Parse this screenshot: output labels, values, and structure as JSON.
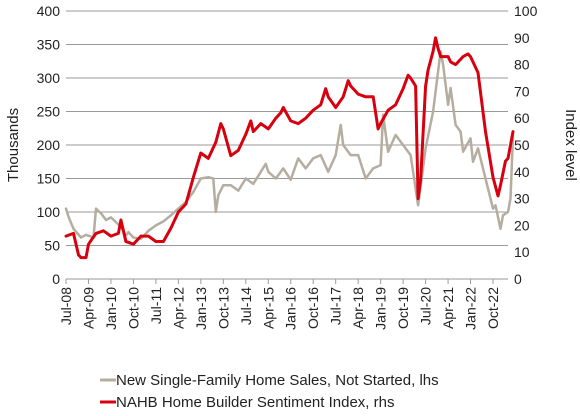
{
  "chart_data": {
    "type": "line",
    "ylabel_left": "Thousands",
    "ylabel_right": "Index level",
    "ylim_left": [
      0,
      400
    ],
    "ylim_right": [
      0,
      100
    ],
    "yticks_left": [
      0,
      50,
      100,
      150,
      200,
      250,
      300,
      350,
      400
    ],
    "yticks_right": [
      0,
      10,
      20,
      30,
      40,
      50,
      60,
      70,
      80,
      90,
      100
    ],
    "x_start": "Jul-08",
    "x_end": "Apr-23",
    "xticks": [
      "Jul-08",
      "Apr-09",
      "Jan-10",
      "Oct-10",
      "Jul-11",
      "Apr-12",
      "Jan-13",
      "Oct-13",
      "Jul-14",
      "Apr-15",
      "Jan-16",
      "Oct-16",
      "Jul-17",
      "Apr-18",
      "Jan-19",
      "Oct-19",
      "Jul-20",
      "Apr-21",
      "Jan-22",
      "Oct-22"
    ],
    "grid": "horizontal",
    "legend_position": "bottom",
    "series": [
      {
        "name": "New Single-Family Home Sales, Not Started, lhs",
        "axis": "left",
        "color": "#b5ada0",
        "points": [
          [
            "Jul-08",
            105
          ],
          [
            "Aug-08",
            93
          ],
          [
            "Oct-08",
            75
          ],
          [
            "Jan-09",
            62
          ],
          [
            "Mar-09",
            66
          ],
          [
            "Jun-09",
            62
          ],
          [
            "Jul-09",
            105
          ],
          [
            "Sep-09",
            98
          ],
          [
            "Nov-09",
            88
          ],
          [
            "Jan-10",
            92
          ],
          [
            "Mar-10",
            85
          ],
          [
            "May-10",
            78
          ],
          [
            "Jul-10",
            65
          ],
          [
            "Aug-10",
            70
          ],
          [
            "Oct-10",
            62
          ],
          [
            "Jan-11",
            60
          ],
          [
            "Apr-11",
            72
          ],
          [
            "Jul-11",
            80
          ],
          [
            "Oct-11",
            86
          ],
          [
            "Jan-12",
            95
          ],
          [
            "Apr-12",
            105
          ],
          [
            "Jul-12",
            115
          ],
          [
            "Oct-12",
            130
          ],
          [
            "Jan-13",
            150
          ],
          [
            "Apr-13",
            152
          ],
          [
            "Jun-13",
            150
          ],
          [
            "Jul-13",
            100
          ],
          [
            "Aug-13",
            125
          ],
          [
            "Oct-13",
            140
          ],
          [
            "Jan-14",
            140
          ],
          [
            "Apr-14",
            132
          ],
          [
            "Jul-14",
            150
          ],
          [
            "Oct-14",
            142
          ],
          [
            "Jan-15",
            160
          ],
          [
            "Mar-15",
            172
          ],
          [
            "Apr-15",
            160
          ],
          [
            "Jul-15",
            150
          ],
          [
            "Oct-15",
            165
          ],
          [
            "Jan-16",
            148
          ],
          [
            "Apr-16",
            180
          ],
          [
            "Jul-16",
            165
          ],
          [
            "Oct-16",
            180
          ],
          [
            "Jan-17",
            185
          ],
          [
            "Apr-17",
            160
          ],
          [
            "Jul-17",
            185
          ],
          [
            "Sep-17",
            230
          ],
          [
            "Oct-17",
            200
          ],
          [
            "Jan-18",
            185
          ],
          [
            "Apr-18",
            185
          ],
          [
            "Jul-18",
            150
          ],
          [
            "Oct-18",
            165
          ],
          [
            "Jan-19",
            170
          ],
          [
            "Feb-19",
            245
          ],
          [
            "Apr-19",
            190
          ],
          [
            "Jul-19",
            215
          ],
          [
            "Oct-19",
            200
          ],
          [
            "Jan-20",
            185
          ],
          [
            "Apr-20",
            110
          ],
          [
            "Jul-20",
            195
          ],
          [
            "Oct-20",
            250
          ],
          [
            "Jan-21",
            340
          ],
          [
            "Feb-21",
            320
          ],
          [
            "Apr-21",
            260
          ],
          [
            "May-21",
            285
          ],
          [
            "Jul-21",
            230
          ],
          [
            "Sep-21",
            220
          ],
          [
            "Oct-21",
            190
          ],
          [
            "Jan-22",
            210
          ],
          [
            "Feb-22",
            175
          ],
          [
            "Apr-22",
            195
          ],
          [
            "Jul-22",
            150
          ],
          [
            "Oct-22",
            105
          ],
          [
            "Nov-22",
            110
          ],
          [
            "Jan-23",
            75
          ],
          [
            "Feb-23",
            95
          ],
          [
            "Apr-23",
            100
          ],
          [
            "May-23",
            120
          ],
          [
            "Jun-23",
            215
          ]
        ]
      },
      {
        "name": "NAHB Home Builder Sentiment Index, rhs",
        "axis": "right",
        "color": "#d7000f",
        "points": [
          [
            "Jul-08",
            16
          ],
          [
            "Oct-08",
            17
          ],
          [
            "Dec-08",
            9
          ],
          [
            "Jan-09",
            8
          ],
          [
            "Mar-09",
            8
          ],
          [
            "Apr-09",
            13
          ],
          [
            "Jul-09",
            17
          ],
          [
            "Oct-09",
            18
          ],
          [
            "Jan-10",
            16
          ],
          [
            "Apr-10",
            17
          ],
          [
            "May-10",
            22
          ],
          [
            "Jul-10",
            14
          ],
          [
            "Oct-10",
            13
          ],
          [
            "Jan-11",
            16
          ],
          [
            "Apr-11",
            16
          ],
          [
            "Jul-11",
            14
          ],
          [
            "Oct-11",
            14
          ],
          [
            "Jan-12",
            19
          ],
          [
            "Apr-12",
            25
          ],
          [
            "Jul-12",
            28
          ],
          [
            "Oct-12",
            38
          ],
          [
            "Jan-13",
            47
          ],
          [
            "Apr-13",
            45
          ],
          [
            "Jul-13",
            51
          ],
          [
            "Sep-13",
            58
          ],
          [
            "Oct-13",
            56
          ],
          [
            "Jan-14",
            46
          ],
          [
            "Apr-14",
            48
          ],
          [
            "Jul-14",
            54
          ],
          [
            "Sep-14",
            59
          ],
          [
            "Oct-14",
            55
          ],
          [
            "Jan-15",
            58
          ],
          [
            "Apr-15",
            56
          ],
          [
            "Jul-15",
            60
          ],
          [
            "Sep-15",
            62
          ],
          [
            "Oct-15",
            64
          ],
          [
            "Jan-16",
            59
          ],
          [
            "Apr-16",
            58
          ],
          [
            "Jul-16",
            60
          ],
          [
            "Oct-16",
            63
          ],
          [
            "Jan-17",
            65
          ],
          [
            "Mar-17",
            71
          ],
          [
            "Apr-17",
            68
          ],
          [
            "Jul-17",
            64
          ],
          [
            "Oct-17",
            68
          ],
          [
            "Dec-17",
            74
          ],
          [
            "Jan-18",
            72
          ],
          [
            "Apr-18",
            69
          ],
          [
            "Jul-18",
            68
          ],
          [
            "Oct-18",
            68
          ],
          [
            "Dec-18",
            56
          ],
          [
            "Jan-19",
            58
          ],
          [
            "Apr-19",
            63
          ],
          [
            "Jul-19",
            65
          ],
          [
            "Oct-19",
            71
          ],
          [
            "Dec-19",
            76
          ],
          [
            "Jan-20",
            75
          ],
          [
            "Mar-20",
            72
          ],
          [
            "Apr-20",
            30
          ],
          [
            "May-20",
            37
          ],
          [
            "Jul-20",
            72
          ],
          [
            "Aug-20",
            78
          ],
          [
            "Oct-20",
            85
          ],
          [
            "Nov-20",
            90
          ],
          [
            "Dec-20",
            86
          ],
          [
            "Jan-21",
            83
          ],
          [
            "Apr-21",
            83
          ],
          [
            "May-21",
            81
          ],
          [
            "Jul-21",
            80
          ],
          [
            "Oct-21",
            83
          ],
          [
            "Dec-21",
            84
          ],
          [
            "Jan-22",
            83
          ],
          [
            "Apr-22",
            77
          ],
          [
            "Jul-22",
            55
          ],
          [
            "Oct-22",
            38
          ],
          [
            "Dec-22",
            31
          ],
          [
            "Jan-23",
            35
          ],
          [
            "Mar-23",
            44
          ],
          [
            "Apr-23",
            45
          ],
          [
            "May-23",
            50
          ],
          [
            "Jun-23",
            55
          ]
        ]
      }
    ]
  }
}
